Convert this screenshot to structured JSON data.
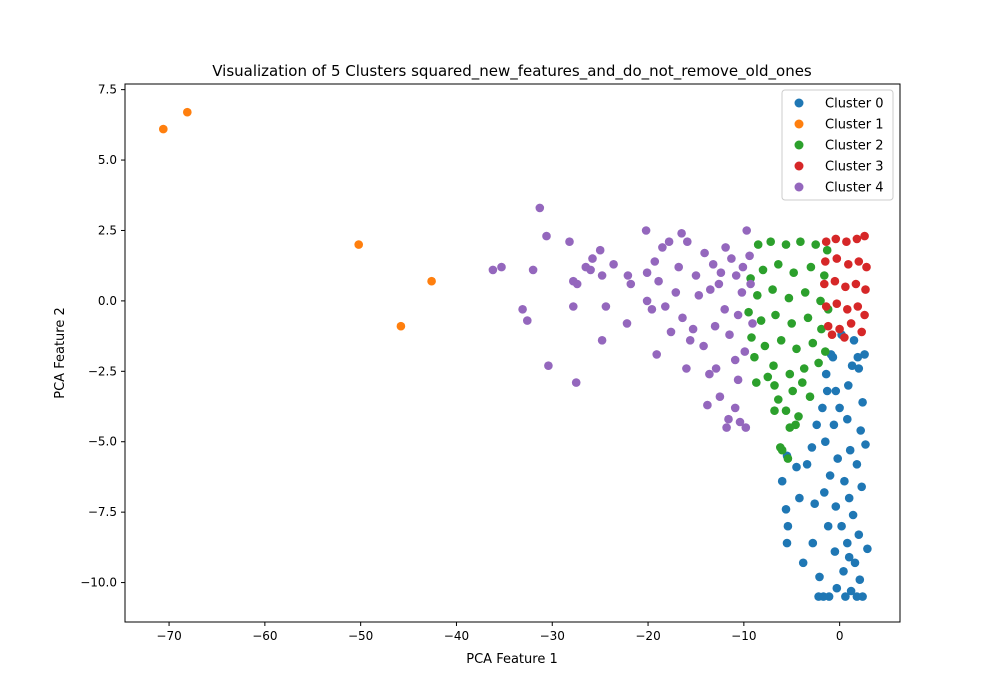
{
  "chart_data": {
    "type": "scatter",
    "title": "Visualization of 5 Clusters squared_new_features_and_do_not_remove_old_ones",
    "xlabel": "PCA Feature 1",
    "ylabel": "PCA Feature 2",
    "xlim": [
      -74.6,
      6.3
    ],
    "ylim": [
      -11.4,
      7.7
    ],
    "xticks": [
      -70,
      -60,
      -50,
      -40,
      -30,
      -20,
      -10,
      0
    ],
    "yticks": [
      -10.0,
      -7.5,
      -5.0,
      -2.5,
      0.0,
      2.5,
      5.0,
      7.5
    ],
    "xtick_labels": [
      "−70",
      "−60",
      "−50",
      "−40",
      "−30",
      "−20",
      "−10",
      "0"
    ],
    "ytick_labels": [
      "−10.0",
      "−7.5",
      "−5.0",
      "−2.5",
      "0.0",
      "2.5",
      "5.0",
      "7.5"
    ],
    "grid": false,
    "legend_position": "top-right",
    "series": [
      {
        "name": "Cluster 0",
        "color": "#1f77b4",
        "points": [
          [
            -1.4,
            -2.6
          ],
          [
            -0.4,
            -3.2
          ],
          [
            0.9,
            -3.0
          ],
          [
            2.0,
            -2.4
          ],
          [
            1.5,
            -1.4
          ],
          [
            0.2,
            -1.2
          ],
          [
            -0.9,
            -1.9
          ],
          [
            2.6,
            -1.9
          ],
          [
            2.4,
            -3.6
          ],
          [
            -1.8,
            -3.8
          ],
          [
            -0.6,
            -4.4
          ],
          [
            0.8,
            -4.2
          ],
          [
            2.2,
            -4.6
          ],
          [
            1.1,
            -5.3
          ],
          [
            -0.2,
            -5.6
          ],
          [
            -1.5,
            -5.0
          ],
          [
            -2.4,
            -4.4
          ],
          [
            -2.9,
            -5.2
          ],
          [
            -1.0,
            -6.2
          ],
          [
            0.5,
            -6.4
          ],
          [
            1.8,
            -5.8
          ],
          [
            2.3,
            -6.6
          ],
          [
            1.0,
            -7.0
          ],
          [
            -0.4,
            -7.3
          ],
          [
            -1.6,
            -6.8
          ],
          [
            0.2,
            -8.0
          ],
          [
            1.4,
            -7.6
          ],
          [
            2.0,
            -8.3
          ],
          [
            0.8,
            -8.6
          ],
          [
            -0.5,
            -8.9
          ],
          [
            -1.2,
            -8.0
          ],
          [
            1.6,
            -9.3
          ],
          [
            0.4,
            -9.6
          ],
          [
            2.1,
            -9.9
          ],
          [
            -0.3,
            -10.2
          ],
          [
            1.2,
            -10.3
          ],
          [
            -1.1,
            -10.5
          ],
          [
            0.6,
            -10.5
          ],
          [
            1.8,
            -10.5
          ],
          [
            -2.2,
            -10.5
          ],
          [
            -1.7,
            -10.5
          ],
          [
            2.4,
            -10.5
          ],
          [
            -5.5,
            -5.5
          ],
          [
            -6.0,
            -6.4
          ],
          [
            -5.6,
            -7.4
          ],
          [
            -5.4,
            -8.0
          ],
          [
            -5.5,
            -8.6
          ],
          [
            -4.2,
            -7.0
          ],
          [
            -3.8,
            -9.3
          ],
          [
            -2.8,
            -8.6
          ],
          [
            -3.4,
            -5.8
          ],
          [
            -2.6,
            -7.2
          ],
          [
            -4.5,
            -5.9
          ],
          [
            1.9,
            -2.0
          ],
          [
            -0.7,
            -2.0
          ],
          [
            2.9,
            -8.8
          ],
          [
            -2.1,
            -9.8
          ],
          [
            1.0,
            -9.1
          ],
          [
            -1.3,
            -3.2
          ],
          [
            2.7,
            -5.1
          ],
          [
            0.0,
            -3.8
          ],
          [
            1.3,
            -2.3
          ]
        ]
      },
      {
        "name": "Cluster 1",
        "color": "#ff7f0e",
        "points": [
          [
            -70.6,
            6.1
          ],
          [
            -68.1,
            6.7
          ],
          [
            -50.2,
            2.0
          ],
          [
            -42.6,
            0.7
          ],
          [
            -45.8,
            -0.9
          ]
        ]
      },
      {
        "name": "Cluster 2",
        "color": "#2ca02c",
        "points": [
          [
            -8.5,
            2.0
          ],
          [
            -7.2,
            2.1
          ],
          [
            -5.6,
            2.0
          ],
          [
            -4.1,
            2.1
          ],
          [
            -2.5,
            2.0
          ],
          [
            -1.3,
            1.8
          ],
          [
            -8.0,
            1.1
          ],
          [
            -6.4,
            1.3
          ],
          [
            -4.8,
            1.0
          ],
          [
            -3.0,
            1.2
          ],
          [
            -1.6,
            0.9
          ],
          [
            -8.6,
            0.2
          ],
          [
            -7.0,
            0.4
          ],
          [
            -5.3,
            0.1
          ],
          [
            -3.6,
            0.3
          ],
          [
            -2.0,
            0.0
          ],
          [
            -1.2,
            -0.3
          ],
          [
            -8.2,
            -0.7
          ],
          [
            -6.7,
            -0.5
          ],
          [
            -5.0,
            -0.8
          ],
          [
            -3.3,
            -0.6
          ],
          [
            -1.9,
            -1.0
          ],
          [
            -7.8,
            -1.6
          ],
          [
            -6.1,
            -1.4
          ],
          [
            -4.5,
            -1.7
          ],
          [
            -2.8,
            -1.5
          ],
          [
            -1.5,
            -1.8
          ],
          [
            -8.9,
            -2.0
          ],
          [
            -6.9,
            -2.3
          ],
          [
            -5.2,
            -2.6
          ],
          [
            -3.7,
            -2.4
          ],
          [
            -2.2,
            -2.2
          ],
          [
            -6.8,
            -3.0
          ],
          [
            -4.9,
            -3.2
          ],
          [
            -3.1,
            -3.4
          ],
          [
            -6.4,
            -3.5
          ],
          [
            -5.6,
            -3.9
          ],
          [
            -4.3,
            -4.1
          ],
          [
            -6.8,
            -3.9
          ],
          [
            -5.2,
            -4.5
          ],
          [
            -4.6,
            -4.4
          ],
          [
            -6.2,
            -5.2
          ],
          [
            -6.0,
            -5.3
          ],
          [
            -5.4,
            -5.6
          ],
          [
            -9.2,
            -1.3
          ],
          [
            -9.5,
            -0.4
          ],
          [
            -9.3,
            0.8
          ],
          [
            -8.7,
            -2.9
          ],
          [
            -7.5,
            -2.7
          ],
          [
            -3.9,
            -2.9
          ]
        ]
      },
      {
        "name": "Cluster 3",
        "color": "#d62728",
        "points": [
          [
            -1.4,
            2.1
          ],
          [
            -0.4,
            2.2
          ],
          [
            0.7,
            2.1
          ],
          [
            1.8,
            2.2
          ],
          [
            2.6,
            2.3
          ],
          [
            -1.5,
            1.4
          ],
          [
            -0.3,
            1.5
          ],
          [
            0.9,
            1.3
          ],
          [
            2.0,
            1.4
          ],
          [
            2.8,
            1.2
          ],
          [
            -1.6,
            0.6
          ],
          [
            -0.5,
            0.7
          ],
          [
            0.6,
            0.5
          ],
          [
            1.7,
            0.6
          ],
          [
            2.7,
            0.4
          ],
          [
            -1.4,
            -0.2
          ],
          [
            -0.3,
            -0.1
          ],
          [
            0.8,
            -0.3
          ],
          [
            1.9,
            -0.2
          ],
          [
            2.6,
            -0.5
          ],
          [
            -1.2,
            -0.9
          ],
          [
            0.0,
            -1.0
          ],
          [
            1.2,
            -0.8
          ],
          [
            2.3,
            -1.1
          ],
          [
            -0.8,
            -1.2
          ],
          [
            0.5,
            -1.3
          ]
        ]
      },
      {
        "name": "Cluster 4",
        "color": "#9467bd",
        "points": [
          [
            -31.3,
            3.3
          ],
          [
            -30.6,
            2.3
          ],
          [
            -28.2,
            2.1
          ],
          [
            -36.2,
            1.1
          ],
          [
            -35.3,
            1.2
          ],
          [
            -32.0,
            1.1
          ],
          [
            -27.8,
            0.7
          ],
          [
            -27.4,
            0.6
          ],
          [
            -25.0,
            1.8
          ],
          [
            -25.8,
            1.5
          ],
          [
            -23.6,
            1.3
          ],
          [
            -26.5,
            1.2
          ],
          [
            -26.0,
            1.1
          ],
          [
            -24.8,
            0.9
          ],
          [
            -22.1,
            0.9
          ],
          [
            -21.8,
            0.6
          ],
          [
            -20.1,
            1.0
          ],
          [
            -19.3,
            1.4
          ],
          [
            -18.5,
            1.9
          ],
          [
            -17.8,
            2.1
          ],
          [
            -16.5,
            2.4
          ],
          [
            -15.9,
            2.1
          ],
          [
            -20.2,
            2.5
          ],
          [
            -33.1,
            -0.3
          ],
          [
            -32.6,
            -0.7
          ],
          [
            -27.8,
            -0.2
          ],
          [
            -24.4,
            -0.2
          ],
          [
            -22.2,
            -0.8
          ],
          [
            -24.8,
            -1.4
          ],
          [
            -19.1,
            -1.9
          ],
          [
            -16.0,
            -2.4
          ],
          [
            -30.4,
            -2.3
          ],
          [
            -27.5,
            -2.9
          ],
          [
            -20.1,
            0.0
          ],
          [
            -19.6,
            -0.3
          ],
          [
            -18.9,
            0.7
          ],
          [
            -17.1,
            0.3
          ],
          [
            -16.4,
            -0.6
          ],
          [
            -15.3,
            -1.0
          ],
          [
            -14.2,
            -1.6
          ],
          [
            -13.6,
            -2.6
          ],
          [
            -13.8,
            -3.7
          ],
          [
            -12.5,
            -3.4
          ],
          [
            -11.6,
            -4.2
          ],
          [
            -10.9,
            -3.8
          ],
          [
            -11.8,
            -4.5
          ],
          [
            -10.4,
            -4.3
          ],
          [
            -9.8,
            -4.5
          ],
          [
            -10.6,
            -2.8
          ],
          [
            -9.9,
            -1.8
          ],
          [
            -15.0,
            0.9
          ],
          [
            -14.1,
            1.7
          ],
          [
            -13.2,
            1.3
          ],
          [
            -12.6,
            0.6
          ],
          [
            -11.9,
            1.9
          ],
          [
            -11.3,
            1.5
          ],
          [
            -10.8,
            0.9
          ],
          [
            -10.2,
            0.3
          ],
          [
            -9.7,
            2.5
          ],
          [
            -9.4,
            1.6
          ],
          [
            -9.1,
            -0.8
          ],
          [
            -12.0,
            -0.3
          ],
          [
            -13.0,
            -0.9
          ],
          [
            -11.5,
            -1.2
          ],
          [
            -10.6,
            -0.5
          ],
          [
            -14.7,
            0.2
          ],
          [
            -16.8,
            1.2
          ],
          [
            -18.2,
            -0.2
          ],
          [
            -17.6,
            -1.1
          ],
          [
            -15.6,
            -1.4
          ],
          [
            -13.5,
            0.4
          ],
          [
            -12.4,
            1.0
          ],
          [
            -10.1,
            1.2
          ],
          [
            -9.3,
            0.6
          ],
          [
            -10.9,
            -2.1
          ],
          [
            -12.9,
            -2.4
          ]
        ]
      }
    ]
  }
}
